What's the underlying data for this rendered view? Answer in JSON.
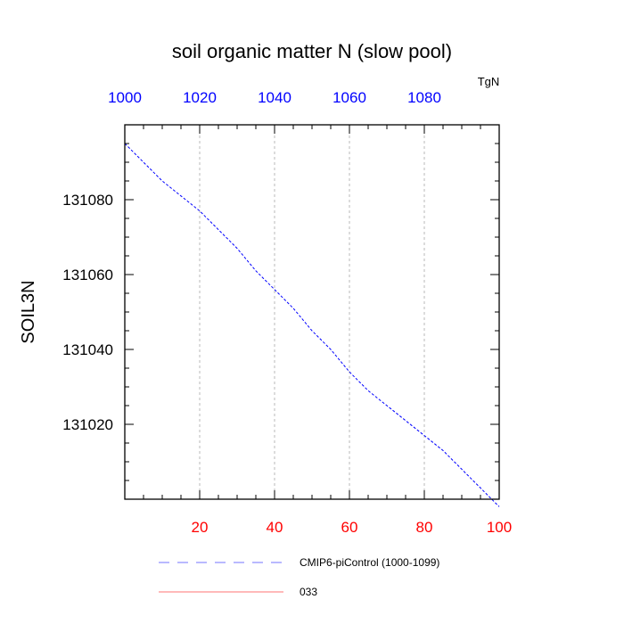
{
  "chart_data": {
    "type": "line",
    "title": "soil organic matter N (slow pool)",
    "ylabel": "SOIL3N",
    "units": "TgN",
    "xlim": [
      0,
      100
    ],
    "ylim": [
      131000,
      131100
    ],
    "x_ticks": [
      20,
      40,
      60,
      80,
      100
    ],
    "x_ticks_top": [
      1000,
      1020,
      1040,
      1060,
      1080
    ],
    "y_ticks": [
      131020,
      131040,
      131060,
      131080
    ],
    "grid": "vertical dashed at major x ticks",
    "legend_position": "bottom",
    "series": [
      {
        "name": "CMIP6-piControl (1000-1099)",
        "color": "#0000ff",
        "dash": "dashed",
        "x": [
          0,
          5,
          10,
          15,
          20,
          25,
          30,
          35,
          40,
          45,
          50,
          55,
          60,
          65,
          70,
          75,
          80,
          85,
          90,
          95,
          100
        ],
        "y": [
          131095,
          131090,
          131085,
          131081,
          131077,
          131072,
          131067,
          131061,
          131056,
          131051,
          131045,
          131040,
          131034,
          131029,
          131025,
          131021,
          131017,
          131013,
          131008,
          131003,
          130998
        ]
      },
      {
        "name": "033",
        "color": "#ff0000",
        "dash": "solid",
        "x": [],
        "y": []
      }
    ]
  },
  "colors": {
    "top_axis_labels": "#0000ff",
    "bottom_axis_labels": "#ff0000",
    "grid": "#a9a9a9"
  }
}
